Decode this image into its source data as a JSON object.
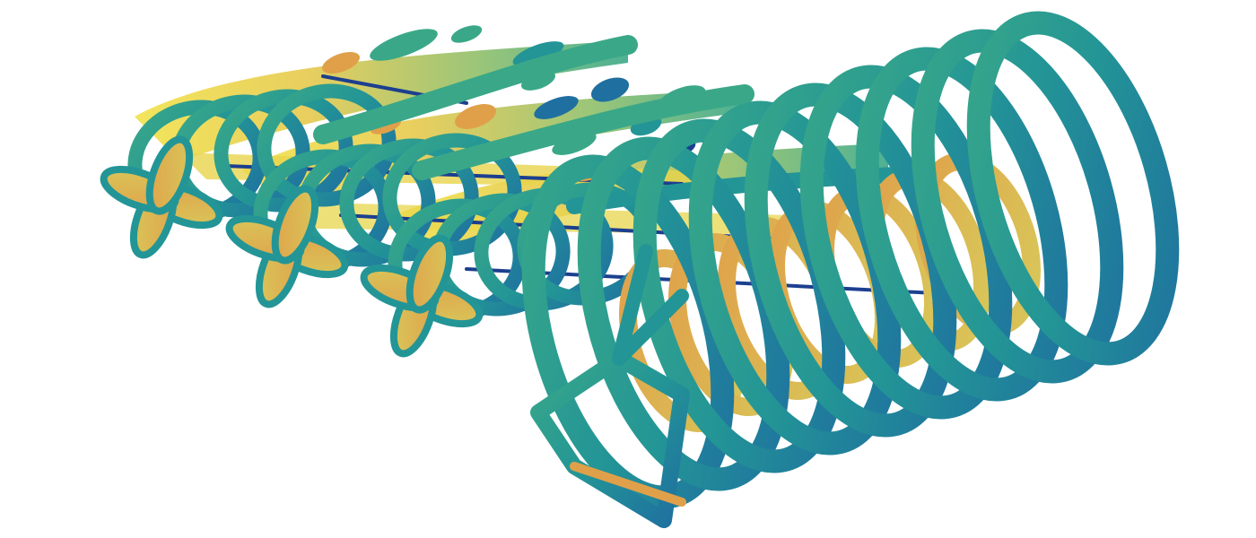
{
  "scene": {
    "background": "#ffffff",
    "colormap": [
      "#1c3f8f",
      "#1f6fa0",
      "#239596",
      "#3aa888",
      "#8fbf6a",
      "#d8c95a",
      "#e0a04a",
      "#f1e24a"
    ],
    "small_rotors": 3,
    "large_rotor_rings": 9
  }
}
